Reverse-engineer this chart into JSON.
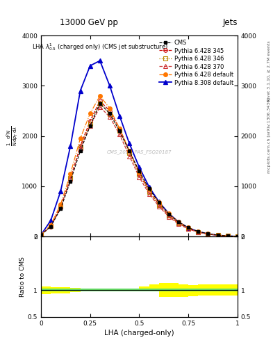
{
  "title_top_left": "13000 GeV pp",
  "title_top_right": "Jets",
  "plot_title": "LHA $\\lambda^{1}_{0.5}$ (charged only) (CMS jet substructure)",
  "xlabel": "LHA (charged-only)",
  "ylabel_parts": [
    "mathrm d^{2}N",
    "mathrm d p_T mathrm d lambda"
  ],
  "watermark": "CMS_2021_PAS_FSQ20187",
  "right_label1": "Rivet 3.1.10, ≥ 2.7M events",
  "right_label2": "mcplots.cern.ch [arXiv:1306.3436]",
  "xlim": [
    0.0,
    1.0
  ],
  "main_ylim": [
    0,
    4000
  ],
  "main_yticks": [
    0,
    1000,
    2000,
    3000,
    4000
  ],
  "ratio_ylim": [
    0.5,
    2.0
  ],
  "ratio_yticks": [
    0.5,
    1.0,
    2.0
  ],
  "x_data": [
    0.0,
    0.05,
    0.1,
    0.15,
    0.2,
    0.25,
    0.3,
    0.35,
    0.4,
    0.45,
    0.5,
    0.55,
    0.6,
    0.65,
    0.7,
    0.75,
    0.8,
    0.85,
    0.9,
    0.95,
    1.0
  ],
  "cms_y": [
    30,
    200,
    550,
    1100,
    1700,
    2200,
    2650,
    2450,
    2100,
    1700,
    1300,
    950,
    680,
    450,
    290,
    175,
    100,
    55,
    28,
    12,
    3
  ],
  "py6_345_y": [
    30,
    200,
    580,
    1150,
    1800,
    2300,
    2700,
    2500,
    2150,
    1700,
    1250,
    900,
    640,
    420,
    265,
    160,
    90,
    50,
    25,
    10,
    2
  ],
  "py6_346_y": [
    30,
    210,
    590,
    1160,
    1780,
    2250,
    2650,
    2440,
    2100,
    1660,
    1230,
    890,
    630,
    415,
    260,
    155,
    88,
    48,
    24,
    9,
    2
  ],
  "py6_370_y": [
    30,
    220,
    600,
    1150,
    1760,
    2200,
    2580,
    2380,
    2030,
    1600,
    1180,
    850,
    600,
    395,
    248,
    148,
    84,
    46,
    23,
    9,
    2
  ],
  "py6_def_y": [
    30,
    230,
    640,
    1250,
    1950,
    2450,
    2800,
    2550,
    2150,
    1700,
    1280,
    940,
    680,
    455,
    290,
    178,
    102,
    56,
    28,
    12,
    3
  ],
  "py8_def_y": [
    30,
    320,
    900,
    1800,
    2900,
    3400,
    3500,
    3000,
    2400,
    1850,
    1380,
    990,
    690,
    460,
    290,
    172,
    96,
    52,
    25,
    10,
    2
  ],
  "ratio_yellow_x": [
    0.0,
    0.05,
    0.1,
    0.15,
    0.2,
    0.25,
    0.3,
    0.35,
    0.4,
    0.45,
    0.5,
    0.55,
    0.6,
    0.65,
    0.7,
    0.75,
    0.8,
    0.85,
    0.9,
    0.95,
    1.0
  ],
  "ratio_yellow_low": [
    0.93,
    0.94,
    0.94,
    0.96,
    0.97,
    0.97,
    0.97,
    0.97,
    0.97,
    0.97,
    0.97,
    0.97,
    0.87,
    0.87,
    0.87,
    0.88,
    0.9,
    0.9,
    0.9,
    0.9,
    0.9
  ],
  "ratio_yellow_hi": [
    1.07,
    1.06,
    1.06,
    1.04,
    1.03,
    1.03,
    1.03,
    1.03,
    1.03,
    1.03,
    1.07,
    1.1,
    1.13,
    1.13,
    1.11,
    1.09,
    1.1,
    1.1,
    1.1,
    1.1,
    1.1
  ],
  "ratio_green_low": [
    0.97,
    0.97,
    0.97,
    0.97,
    0.97,
    0.97,
    0.97,
    0.97,
    0.97,
    0.97,
    0.97,
    0.97,
    0.97,
    0.97,
    0.97,
    0.97,
    0.97,
    0.97,
    0.97,
    0.97,
    0.97
  ],
  "ratio_green_hi": [
    1.03,
    1.03,
    1.03,
    1.03,
    1.03,
    1.03,
    1.03,
    1.03,
    1.03,
    1.03,
    1.03,
    1.03,
    1.03,
    1.03,
    1.03,
    1.03,
    1.03,
    1.03,
    1.03,
    1.03,
    1.03
  ],
  "color_py6_345": "#cc0000",
  "color_py6_346": "#bb8800",
  "color_py6_370": "#cc3333",
  "color_py6_def": "#ff7700",
  "color_py8_def": "#0000cc",
  "color_cms": "#000000",
  "fig_width": 3.93,
  "fig_height": 5.12,
  "dpi": 100
}
